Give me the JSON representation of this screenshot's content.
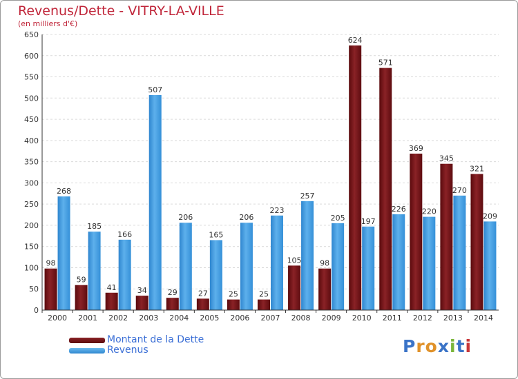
{
  "header": {
    "title": "Revenus/Dette - VITRY-LA-VILLE",
    "subtitle": "(en milliers d'€)"
  },
  "legend": [
    {
      "label": "Montant de la Dette",
      "color": "#6b0f12"
    },
    {
      "label": "Revenus",
      "color": "#3f9be0"
    }
  ],
  "logo": {
    "letters": [
      "P",
      "r",
      "o",
      "x",
      "i",
      "t",
      "i"
    ],
    "colors": [
      "#3a73c7",
      "#e0922a",
      "#e0922a",
      "#3a73c7",
      "#7ab53a",
      "#3a73c7",
      "#c8363a"
    ]
  },
  "chart_data": {
    "type": "bar",
    "title": "Revenus/Dette - VITRY-LA-VILLE",
    "ylabel": "(en milliers d'€)",
    "categories": [
      "2000",
      "2001",
      "2002",
      "2003",
      "2004",
      "2005",
      "2006",
      "2007",
      "2008",
      "2009",
      "2010",
      "2011",
      "2012",
      "2013",
      "2014"
    ],
    "series": [
      {
        "name": "Montant de la Dette",
        "color": "#7a1a1e",
        "values": [
          98,
          59,
          41,
          34,
          29,
          27,
          25,
          25,
          105,
          98,
          624,
          571,
          369,
          345,
          321
        ]
      },
      {
        "name": "Revenus",
        "color": "#3f9be0",
        "values": [
          268,
          185,
          166,
          507,
          206,
          165,
          206,
          223,
          257,
          205,
          197,
          226,
          220,
          270,
          209
        ]
      }
    ],
    "ylim": [
      0,
      650
    ],
    "yticks": [
      0,
      50,
      100,
      150,
      200,
      250,
      300,
      350,
      400,
      450,
      500,
      550,
      600,
      650
    ],
    "grid": true,
    "legend_position": "bottom-left"
  }
}
